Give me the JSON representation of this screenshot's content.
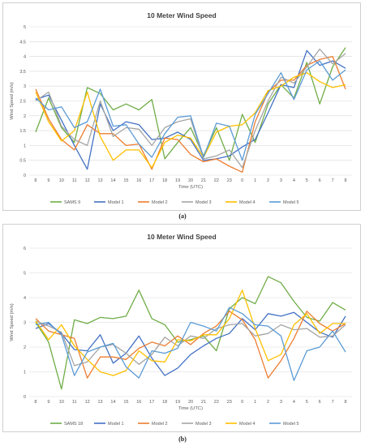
{
  "captions": [
    "(a)",
    "(b)"
  ],
  "chart_data": [
    {
      "type": "line",
      "title": "10 Meter Wind Speed",
      "xlabel": "Time (UTC)",
      "ylabel": "Wind Speed (m/s)",
      "ylim": [
        0,
        5
      ],
      "yticks": [
        "0",
        "0.5",
        "1",
        "1.5",
        "2",
        "2.5",
        "3",
        "3.5",
        "4",
        "4.5",
        "5"
      ],
      "categories": [
        "8",
        "9",
        "10",
        "11",
        "12",
        "13",
        "14",
        "15",
        "16",
        "17",
        "18",
        "19",
        "20",
        "21",
        "22",
        "23",
        "0",
        "1",
        "2",
        "3",
        "4",
        "5",
        "6",
        "7",
        "8"
      ],
      "grid": true,
      "legend": "bottom",
      "series": [
        {
          "name": "SAMS 9",
          "color": "#70ad47",
          "values": [
            1.45,
            2.6,
            1.6,
            1.1,
            2.95,
            2.75,
            2.2,
            2.4,
            2.2,
            2.55,
            0.55,
            1.1,
            1.6,
            0.65,
            1.6,
            0.5,
            2.05,
            1.1,
            2.4,
            3.05,
            2.6,
            3.8,
            2.4,
            3.65,
            4.3
          ]
        },
        {
          "name": "Model 1",
          "color": "#4472c4",
          "values": [
            2.55,
            2.7,
            1.85,
            1.0,
            0.2,
            2.4,
            1.5,
            1.8,
            1.7,
            1.2,
            1.25,
            1.45,
            1.2,
            0.5,
            0.55,
            0.65,
            0.95,
            1.2,
            2.1,
            3.05,
            2.95,
            4.2,
            3.7,
            3.85,
            3.6
          ]
        },
        {
          "name": "Model 2",
          "color": "#ed7d31",
          "values": [
            2.9,
            1.9,
            1.2,
            0.85,
            1.7,
            1.4,
            1.4,
            1.0,
            1.05,
            0.2,
            1.25,
            1.2,
            0.7,
            0.45,
            0.55,
            0.3,
            0.1,
            1.8,
            2.8,
            3.2,
            3.2,
            3.7,
            3.9,
            4.0,
            2.9
          ]
        },
        {
          "name": "Model 3",
          "color": "#a5a5a5",
          "values": [
            2.5,
            2.8,
            1.65,
            1.2,
            1.0,
            2.5,
            1.3,
            1.6,
            1.55,
            1.0,
            1.6,
            1.8,
            1.9,
            0.55,
            0.65,
            0.85,
            0.25,
            1.5,
            2.5,
            3.3,
            3.1,
            3.65,
            4.25,
            3.75,
            4.1
          ]
        },
        {
          "name": "Model 4",
          "color": "#ffc000",
          "values": [
            2.8,
            1.8,
            1.15,
            1.5,
            2.8,
            1.3,
            0.5,
            0.85,
            0.85,
            0.25,
            1.1,
            1.35,
            1.25,
            0.6,
            1.45,
            1.65,
            1.7,
            2.1,
            2.85,
            3.0,
            3.3,
            3.45,
            3.15,
            2.95,
            3.05
          ]
        },
        {
          "name": "Model 5",
          "color": "#5b9bd5",
          "values": [
            2.6,
            2.2,
            2.3,
            1.6,
            1.8,
            2.9,
            1.65,
            1.7,
            1.05,
            0.6,
            1.4,
            1.95,
            2.0,
            0.6,
            1.75,
            1.65,
            0.5,
            2.05,
            2.75,
            3.45,
            2.55,
            3.55,
            3.85,
            3.2,
            3.55
          ]
        }
      ]
    },
    {
      "type": "line",
      "title": "10 Meter Wind Speed",
      "xlabel": "Time (UTC)",
      "ylabel": "Wind Speed (m/s)",
      "ylim": [
        0,
        6
      ],
      "yticks": [
        "0",
        "1",
        "2",
        "3",
        "4",
        "5",
        "6"
      ],
      "categories": [
        "8",
        "9",
        "10",
        "11",
        "12",
        "13",
        "14",
        "15",
        "16",
        "17",
        "18",
        "19",
        "20",
        "21",
        "22",
        "23",
        "0",
        "1",
        "2",
        "3",
        "4",
        "5",
        "6",
        "7",
        "8"
      ],
      "grid": true,
      "legend": "bottom",
      "series": [
        {
          "name": "SAMS 18",
          "color": "#70ad47",
          "values": [
            3.0,
            2.2,
            0.3,
            3.1,
            2.95,
            3.2,
            3.15,
            3.25,
            4.3,
            3.15,
            2.9,
            2.2,
            2.3,
            2.45,
            1.85,
            3.55,
            4.0,
            3.75,
            4.85,
            4.6,
            3.85,
            3.2,
            3.05,
            3.8,
            3.5
          ]
        },
        {
          "name": "Model 1",
          "color": "#4472c4",
          "values": [
            2.75,
            2.95,
            2.55,
            1.9,
            1.85,
            2.5,
            1.35,
            1.75,
            2.45,
            1.55,
            0.85,
            1.15,
            1.7,
            2.05,
            2.35,
            2.55,
            3.15,
            2.7,
            3.35,
            3.25,
            3.4,
            3.0,
            2.6,
            2.4,
            3.25
          ]
        },
        {
          "name": "Model 2",
          "color": "#ed7d31",
          "values": [
            3.15,
            2.65,
            2.5,
            2.35,
            0.75,
            1.6,
            1.6,
            1.5,
            1.95,
            2.2,
            2.05,
            2.45,
            2.1,
            2.55,
            2.85,
            3.45,
            3.1,
            2.3,
            0.75,
            1.45,
            2.35,
            3.45,
            2.95,
            2.65,
            2.95
          ]
        },
        {
          "name": "Model 3",
          "color": "#a5a5a5",
          "values": [
            3.05,
            2.85,
            2.6,
            1.25,
            1.4,
            2.0,
            2.1,
            1.75,
            1.3,
            1.7,
            2.4,
            2.05,
            2.45,
            2.35,
            2.75,
            2.9,
            2.95,
            2.45,
            2.55,
            2.9,
            2.7,
            2.75,
            2.4,
            2.45,
            2.9
          ]
        },
        {
          "name": "Model 4",
          "color": "#ffc000",
          "values": [
            3.05,
            2.3,
            2.9,
            2.05,
            1.5,
            1.0,
            0.85,
            1.05,
            1.85,
            1.45,
            1.4,
            2.3,
            2.25,
            2.5,
            2.5,
            3.15,
            4.3,
            2.75,
            1.45,
            1.7,
            2.9,
            3.35,
            2.55,
            2.95,
            2.95
          ]
        },
        {
          "name": "Model 5",
          "color": "#5b9bd5",
          "values": [
            2.9,
            3.0,
            2.5,
            0.85,
            1.8,
            2.0,
            2.15,
            1.2,
            0.75,
            1.85,
            1.75,
            1.95,
            3.0,
            2.85,
            2.65,
            3.6,
            3.35,
            2.9,
            2.85,
            2.45,
            0.65,
            1.85,
            2.0,
            2.65,
            1.8
          ]
        }
      ]
    }
  ]
}
